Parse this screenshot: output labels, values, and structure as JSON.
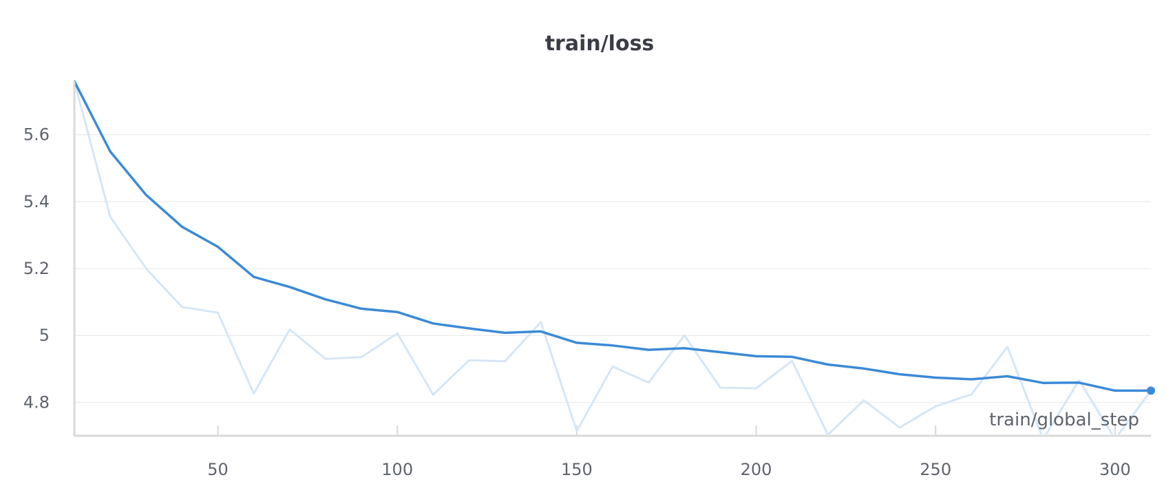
{
  "chart_data": {
    "type": "line",
    "title": "train/loss",
    "xlabel": "train/global_step",
    "ylabel": "",
    "xlim": [
      10,
      310
    ],
    "ylim": [
      4.7,
      5.76
    ],
    "xticks": [
      50,
      100,
      150,
      200,
      250,
      300
    ],
    "xtick_labels": [
      "50",
      "100",
      "150",
      "200",
      "250",
      "300"
    ],
    "yticks": [
      4.8,
      5.0,
      5.2,
      5.4,
      5.6
    ],
    "ytick_labels": [
      "4.8",
      "5",
      "5.2",
      "5.4",
      "5.6"
    ],
    "grid": true,
    "colors": {
      "smoothed": "#3b8ad6",
      "raw": "#d6e6f5",
      "grid": "#e6e6e6",
      "axis": "#d9d9d9"
    },
    "x": [
      10,
      20,
      30,
      40,
      50,
      60,
      70,
      80,
      90,
      100,
      110,
      120,
      130,
      140,
      150,
      160,
      170,
      180,
      190,
      200,
      210,
      220,
      230,
      240,
      250,
      260,
      270,
      280,
      290,
      300,
      310
    ],
    "series": [
      {
        "role": "raw",
        "values": [
          5.76,
          5.355,
          5.2,
          5.085,
          5.068,
          4.826,
          5.018,
          4.93,
          4.935,
          5.006,
          4.823,
          4.926,
          4.923,
          5.04,
          4.714,
          4.907,
          4.859,
          5.0,
          4.844,
          4.842,
          4.924,
          4.703,
          4.806,
          4.725,
          4.788,
          4.824,
          4.966,
          4.69,
          4.866,
          4.69,
          4.835
        ]
      },
      {
        "role": "smoothed",
        "values": [
          5.76,
          5.55,
          5.42,
          5.325,
          5.265,
          5.175,
          5.145,
          5.108,
          5.08,
          5.07,
          5.036,
          5.021,
          5.008,
          5.012,
          4.978,
          4.97,
          4.957,
          4.962,
          4.95,
          4.938,
          4.936,
          4.913,
          4.901,
          4.884,
          4.874,
          4.869,
          4.878,
          4.858,
          4.859,
          4.835,
          4.835
        ]
      }
    ]
  }
}
